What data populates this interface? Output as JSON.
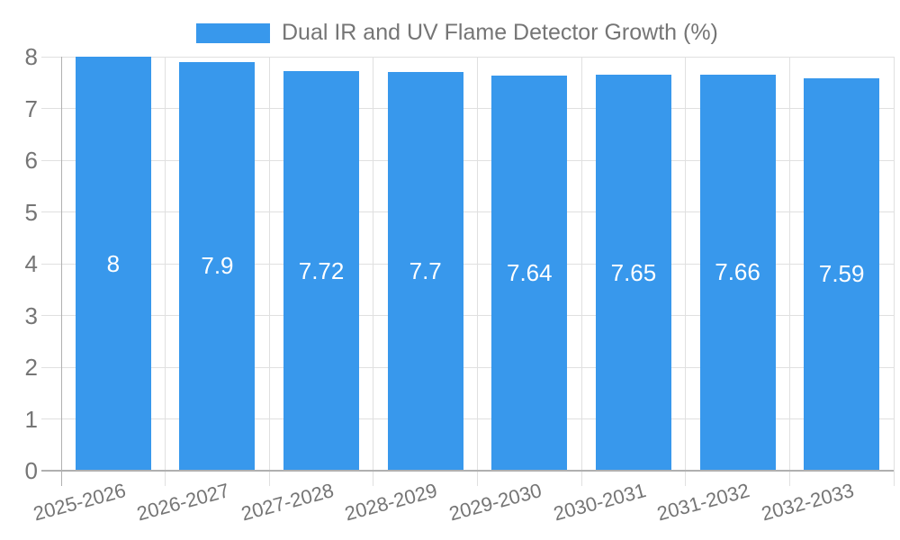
{
  "chart_data": {
    "type": "bar",
    "title": "Dual IR and UV Flame Detector Growth (%)",
    "legend_position": "top",
    "categories": [
      "2025-2026",
      "2026-2027",
      "2027-2028",
      "2028-2029",
      "2029-2030",
      "2030-2031",
      "2031-2032",
      "2032-2033"
    ],
    "values": [
      8,
      7.9,
      7.72,
      7.7,
      7.64,
      7.65,
      7.66,
      7.59
    ],
    "value_labels": [
      "8",
      "7.9",
      "7.72",
      "7.7",
      "7.64",
      "7.65",
      "7.66",
      "7.59"
    ],
    "xlabel": "",
    "ylabel": "",
    "ylim": [
      0,
      8
    ],
    "yticks": [
      0,
      1,
      2,
      3,
      4,
      5,
      6,
      7,
      8
    ],
    "grid": "on",
    "bar_color": "#3898EC",
    "text_color": "#757575",
    "grid_color": "#e0e0e0",
    "axis_color": "#b0b0b0",
    "value_label_color": "#ffffff"
  }
}
